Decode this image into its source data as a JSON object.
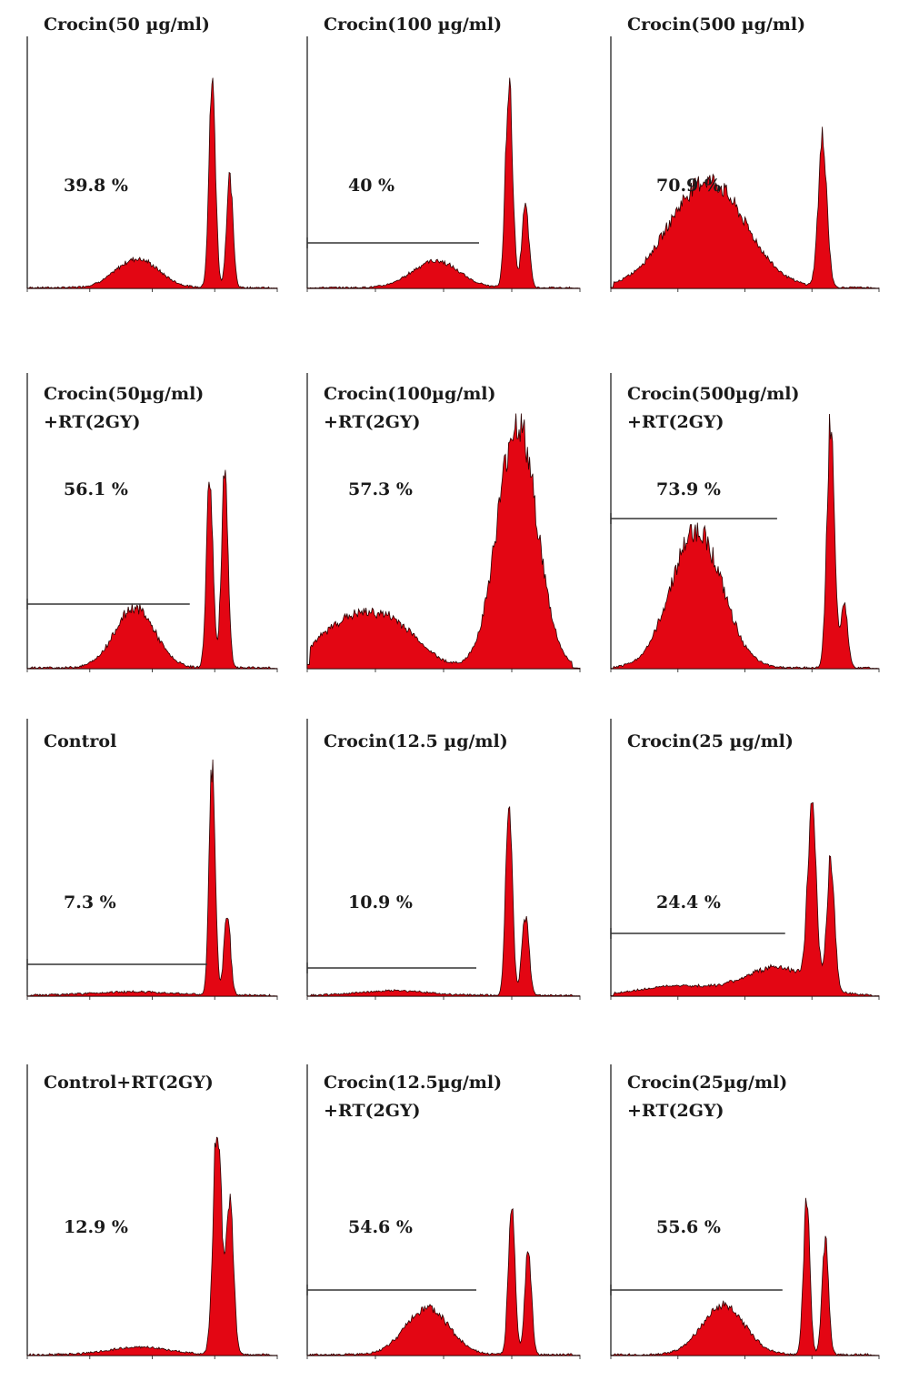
{
  "chart_data": [
    {
      "type": "area",
      "title": "Crocin(50 µg/ml)",
      "subtitle": "",
      "annotation": "39.8 %",
      "gate": false,
      "color": "#e30613",
      "peaks": [
        {
          "x": 0.44,
          "h": 0.14,
          "w": 0.085
        },
        {
          "x": 0.74,
          "h": 1.0,
          "w": 0.013
        },
        {
          "x": 0.81,
          "h": 0.52,
          "w": 0.013
        }
      ]
    },
    {
      "type": "area",
      "title": "Crocin(100 µg/ml)",
      "subtitle": "",
      "annotation": "40 %",
      "gate": true,
      "color": "#e30613",
      "peaks": [
        {
          "x": 0.47,
          "h": 0.13,
          "w": 0.085
        },
        {
          "x": 0.74,
          "h": 1.0,
          "w": 0.013
        },
        {
          "x": 0.8,
          "h": 0.39,
          "w": 0.013
        }
      ]
    },
    {
      "type": "area",
      "title": "Crocin(500 µg/ml)",
      "subtitle": "",
      "annotation": "70.9 %",
      "gate": false,
      "color": "#e30613",
      "peaks": [
        {
          "x": 0.36,
          "h": 0.52,
          "w": 0.14
        },
        {
          "x": 0.79,
          "h": 0.72,
          "w": 0.016
        }
      ]
    },
    {
      "type": "area",
      "title": "Crocin(50µg/ml)",
      "subtitle": "+RT(2GY)",
      "annotation": "56.1 %",
      "gate": true,
      "color": "#e30613",
      "peaks": [
        {
          "x": 0.43,
          "h": 0.24,
          "w": 0.08
        },
        {
          "x": 0.73,
          "h": 0.76,
          "w": 0.013
        },
        {
          "x": 0.79,
          "h": 0.8,
          "w": 0.013
        }
      ]
    },
    {
      "type": "area",
      "title": "Crocin(100µg/ml)",
      "subtitle": "+RT(2GY)",
      "annotation": "57.3 %",
      "gate": false,
      "color": "#e30613",
      "peaks": [
        {
          "x": 0.14,
          "h": 0.17,
          "w": 0.11
        },
        {
          "x": 0.32,
          "h": 0.15,
          "w": 0.1
        },
        {
          "x": 0.77,
          "h": 0.98,
          "w": 0.072
        }
      ]
    },
    {
      "type": "area",
      "title": "Crocin(500µg/ml)",
      "subtitle": "+RT(2GY)",
      "annotation": "73.9 %",
      "gate": true,
      "color": "#e30613",
      "peaks": [
        {
          "x": 0.32,
          "h": 0.55,
          "w": 0.095
        },
        {
          "x": 0.82,
          "h": 0.99,
          "w": 0.014
        },
        {
          "x": 0.87,
          "h": 0.26,
          "w": 0.013
        }
      ]
    },
    {
      "type": "area",
      "title": "Control",
      "subtitle": "",
      "annotation": "7.3 %",
      "gate": true,
      "color": "#e30613",
      "peaks": [
        {
          "x": 0.42,
          "h": 0.015,
          "w": 0.16
        },
        {
          "x": 0.74,
          "h": 1.0,
          "w": 0.012
        },
        {
          "x": 0.8,
          "h": 0.35,
          "w": 0.013
        }
      ]
    },
    {
      "type": "area",
      "title": "Crocin(12.5 µg/ml)",
      "subtitle": "",
      "annotation": "10.9 %",
      "gate": true,
      "color": "#e30613",
      "peaks": [
        {
          "x": 0.32,
          "h": 0.02,
          "w": 0.12
        },
        {
          "x": 0.74,
          "h": 0.86,
          "w": 0.012
        },
        {
          "x": 0.8,
          "h": 0.34,
          "w": 0.013
        }
      ]
    },
    {
      "type": "area",
      "title": "Crocin(25 µg/ml)",
      "subtitle": "",
      "annotation": "24.4 %",
      "gate": true,
      "color": "#e30613",
      "peaks": [
        {
          "x": 0.25,
          "h": 0.04,
          "w": 0.14
        },
        {
          "x": 0.62,
          "h": 0.12,
          "w": 0.12
        },
        {
          "x": 0.75,
          "h": 0.72,
          "w": 0.016
        },
        {
          "x": 0.82,
          "h": 0.56,
          "w": 0.014
        }
      ]
    },
    {
      "type": "area",
      "title": "Control+RT(2GY)",
      "subtitle": "",
      "annotation": "12.9 %",
      "gate": false,
      "color": "#e30613",
      "peaks": [
        {
          "x": 0.45,
          "h": 0.03,
          "w": 0.12
        },
        {
          "x": 0.76,
          "h": 0.96,
          "w": 0.016
        },
        {
          "x": 0.81,
          "h": 0.62,
          "w": 0.015
        }
      ]
    },
    {
      "type": "area",
      "title": "Crocin(12.5µg/ml)",
      "subtitle": "+RT(2GY)",
      "annotation": "54.6 %",
      "gate": true,
      "color": "#e30613",
      "peaks": [
        {
          "x": 0.44,
          "h": 0.19,
          "w": 0.08
        },
        {
          "x": 0.75,
          "h": 0.64,
          "w": 0.012
        },
        {
          "x": 0.81,
          "h": 0.44,
          "w": 0.012
        }
      ]
    },
    {
      "type": "area",
      "title": "Crocin(25µg/ml)",
      "subtitle": "+RT(2GY)",
      "annotation": "55.6 %",
      "gate": true,
      "color": "#e30613",
      "peaks": [
        {
          "x": 0.42,
          "h": 0.2,
          "w": 0.08
        },
        {
          "x": 0.73,
          "h": 0.63,
          "w": 0.012
        },
        {
          "x": 0.8,
          "h": 0.47,
          "w": 0.012
        }
      ]
    }
  ]
}
